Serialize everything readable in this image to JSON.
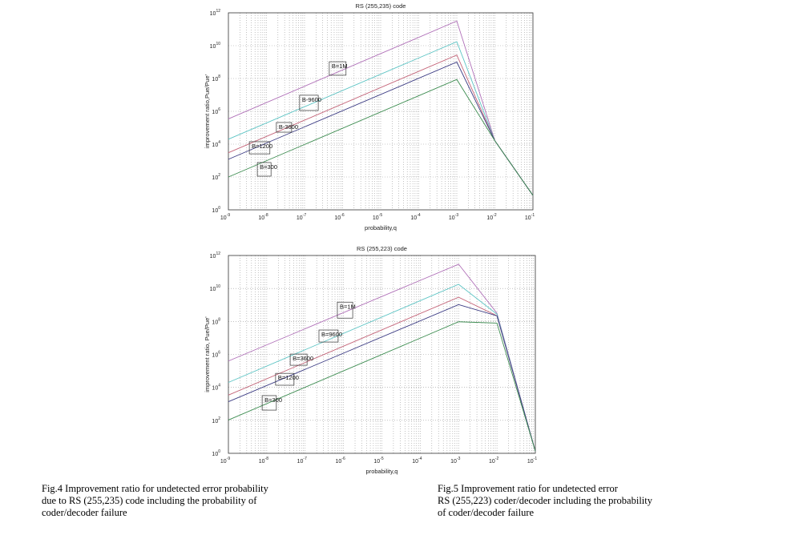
{
  "colors": {
    "purple": "#b070b8",
    "cyan": "#5cc4c4",
    "red": "#c46478",
    "blue": "#3c3c84",
    "green": "#3c8c50",
    "grid": "#9a9a9a"
  },
  "captions": [
    [
      "Fig.4 Improvement ratio for undetected error probability",
      "due to RS (255,235) code including the probability of",
      "coder/decoder  failure"
    ],
    [
      "Fig.5 Improvement ratio for undetected error",
      "RS (255,223) coder/decoder including the probability",
      "of coder/decoder failure"
    ]
  ],
  "chart_data": [
    {
      "type": "line",
      "title": "RS (255,235) code",
      "xlabel": "probability,q",
      "ylabel": "improvement ratio,Pue/Pue'",
      "xscale": "log",
      "yscale": "log",
      "xlim": [
        1e-09,
        0.1
      ],
      "ylim": [
        1,
        1000000000000.0
      ],
      "xticks": [
        "10-9",
        "10-8",
        "10-7",
        "10-6",
        "10-5",
        "10-4",
        "10-3",
        "10-2",
        "10-1"
      ],
      "yticks": [
        "10-0",
        "10-2",
        "10-4",
        "10-6",
        "10-8",
        "10-10",
        "10-12"
      ],
      "grid": true,
      "x_log10": [
        -9,
        -3,
        -2,
        -1
      ],
      "series": [
        {
          "name": "B=1M",
          "color": "purple",
          "y_log10": [
            5.54,
            11.5,
            4.21,
            0.88
          ]
        },
        {
          "name": "B=9600",
          "color": "cyan",
          "y_log10": [
            4.3,
            10.24,
            4.21,
            0.88
          ]
        },
        {
          "name": "B=3600",
          "color": "red",
          "y_log10": [
            3.48,
            9.43,
            4.21,
            0.88
          ]
        },
        {
          "name": "B=1200",
          "color": "blue",
          "y_log10": [
            3.08,
            9.0,
            4.21,
            0.88
          ]
        },
        {
          "name": "B=300",
          "color": "green",
          "y_log10": [
            2.0,
            7.94,
            4.21,
            0.88
          ]
        }
      ],
      "annotations": [
        {
          "text": "B=1M",
          "box_log10": [
            -6.35,
            -5.91,
            9.02,
            8.2
          ]
        },
        {
          "text": "B-9600",
          "box_log10": [
            -7.13,
            -6.64,
            6.98,
            6.05
          ]
        },
        {
          "text": "B-3600",
          "box_log10": [
            -7.74,
            -7.34,
            5.32,
            4.73
          ]
        },
        {
          "text": "B=1200",
          "box_log10": [
            -8.45,
            -7.91,
            4.15,
            3.41
          ]
        },
        {
          "text": "B=300",
          "box_log10": [
            -8.24,
            -7.88,
            2.88,
            2.05
          ]
        }
      ]
    },
    {
      "type": "line",
      "title": "RS (255,223) code",
      "xlabel": "probability,q",
      "ylabel": "improvement ratio, Pue/Pue'",
      "xscale": "log",
      "yscale": "log",
      "xlim": [
        1e-09,
        0.1
      ],
      "ylim": [
        1,
        1000000000000.0
      ],
      "xticks": [
        "10-9",
        "10-8",
        "10-7",
        "10-6",
        "10-5",
        "10-4",
        "10-3",
        "10-2",
        "10-1"
      ],
      "yticks": [
        "10-0",
        "10-2",
        "10-4",
        "10-6",
        "10-8",
        "10-10",
        "10-12"
      ],
      "grid": true,
      "x_log10": [
        -9,
        -3,
        -2,
        -1
      ],
      "series": [
        {
          "name": "B=1M",
          "color": "purple",
          "y_log10": [
            5.6,
            11.47,
            8.5,
            0.13
          ]
        },
        {
          "name": "B=9600",
          "color": "cyan",
          "y_log10": [
            4.3,
            10.25,
            8.44,
            0.13
          ]
        },
        {
          "name": "B=3600",
          "color": "red",
          "y_log10": [
            3.53,
            9.47,
            8.34,
            0.13
          ]
        },
        {
          "name": "B=1200",
          "color": "blue",
          "y_log10": [
            3.13,
            9.02,
            8.34,
            0.13
          ]
        },
        {
          "name": "B=300",
          "color": "green",
          "y_log10": [
            2.02,
            7.98,
            7.9,
            0.13
          ]
        }
      ],
      "annotations": [
        {
          "text": "B=1M",
          "box_log10": [
            -6.16,
            -5.76,
            9.17,
            8.2
          ]
        },
        {
          "text": "B=9600",
          "box_log10": [
            -6.64,
            -6.14,
            7.48,
            6.75
          ]
        },
        {
          "text": "B=3600",
          "box_log10": [
            -7.39,
            -6.95,
            6.02,
            5.34
          ]
        },
        {
          "text": "B=1200",
          "box_log10": [
            -7.77,
            -7.29,
            4.85,
            4.13
          ]
        },
        {
          "text": "B=300",
          "box_log10": [
            -8.12,
            -7.75,
            3.5,
            2.62
          ]
        }
      ]
    }
  ]
}
